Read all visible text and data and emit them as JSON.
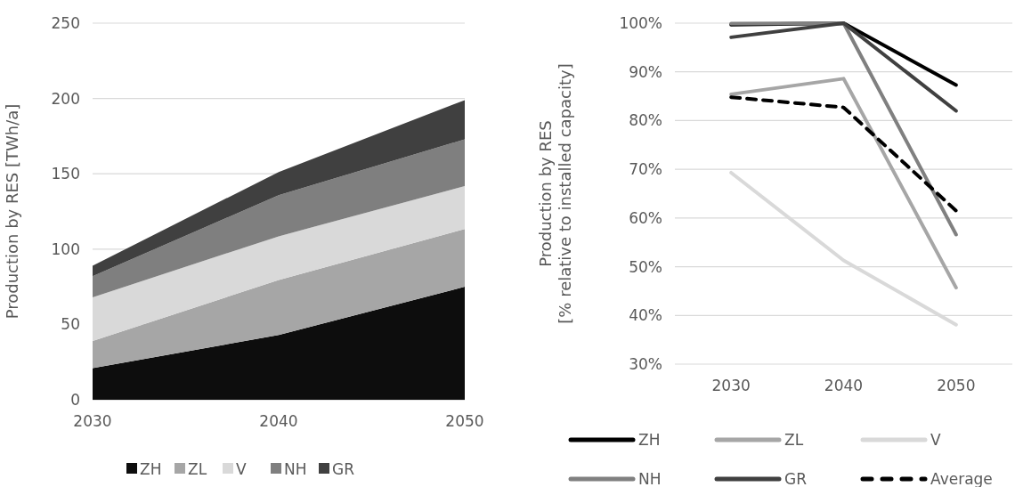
{
  "chart_data": [
    {
      "type": "area",
      "stacked": true,
      "ylabel": "Production by RES [TWh/a]",
      "categories": [
        "2030",
        "2040",
        "2050"
      ],
      "ylim": [
        0,
        250
      ],
      "yticks": [
        0,
        50,
        100,
        150,
        200,
        250
      ],
      "grid": "y",
      "legend": "bottom",
      "series": [
        {
          "name": "ZH",
          "color": "#0d0d0d",
          "values": [
            21,
            43,
            75
          ]
        },
        {
          "name": "ZL",
          "color": "#a6a6a6",
          "values": [
            18,
            36.5,
            38.4
          ]
        },
        {
          "name": "V",
          "color": "#d9d9d9",
          "values": [
            29,
            29,
            28.5
          ]
        },
        {
          "name": "NH",
          "color": "#7f7f7f",
          "values": [
            14,
            27.3,
            31
          ]
        },
        {
          "name": "GR",
          "color": "#404040",
          "values": [
            7,
            15.4,
            26
          ]
        }
      ]
    },
    {
      "type": "line",
      "ylabel": "Production by RES\n[% relative to installed capacity]",
      "categories": [
        "2030",
        "2040",
        "2050"
      ],
      "ylim": [
        30,
        100
      ],
      "yticks": [
        {
          "value": 30,
          "label": "30%"
        },
        {
          "value": 40,
          "label": "40%"
        },
        {
          "value": 50,
          "label": "50%"
        },
        {
          "value": 60,
          "label": "60%"
        },
        {
          "value": 70,
          "label": "70%"
        },
        {
          "value": 80,
          "label": "80%"
        },
        {
          "value": 90,
          "label": "90%"
        },
        {
          "value": 100,
          "label": "100%"
        }
      ],
      "grid": "y",
      "legend": "bottom",
      "series": [
        {
          "name": "ZH",
          "color": "#000000",
          "values": [
            99.7,
            100,
            87.3
          ]
        },
        {
          "name": "ZL",
          "color": "#a6a6a6",
          "values": [
            85.4,
            88.6,
            45.7
          ]
        },
        {
          "name": "V",
          "color": "#d9d9d9",
          "values": [
            69.3,
            51.3,
            38.1
          ]
        },
        {
          "name": "NH",
          "color": "#808080",
          "values": [
            99.9,
            100,
            56.6
          ]
        },
        {
          "name": "GR",
          "color": "#404040",
          "values": [
            97.1,
            100,
            82
          ]
        },
        {
          "name": "Average",
          "color": "#000000",
          "values": [
            84.8,
            82.7,
            61.5
          ],
          "line_style": "dashed"
        }
      ]
    }
  ]
}
